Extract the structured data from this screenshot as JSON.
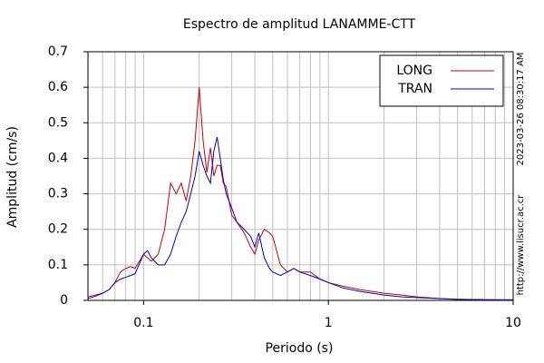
{
  "chart_data": {
    "type": "line",
    "title": "Espectro de amplitud LANAMME-CTT",
    "xlabel": "Periodo (s)",
    "ylabel": "Amplitud (cm/s)",
    "side_texts": [
      "2023-03-26 08:30:17 AM",
      "http://www.lisucr.ac.cr"
    ],
    "xscale": "log",
    "grid": true,
    "legend": "upper right",
    "xlim": [
      0.05,
      10
    ],
    "xticks": [
      0.1,
      1,
      10
    ],
    "ylim": [
      0,
      0.7
    ],
    "yticks": [
      0,
      0.1,
      0.2,
      0.3,
      0.4,
      0.5,
      0.6,
      0.7
    ],
    "x": [
      0.05,
      0.055,
      0.06,
      0.065,
      0.07,
      0.075,
      0.08,
      0.085,
      0.09,
      0.1,
      0.105,
      0.11,
      0.12,
      0.13,
      0.14,
      0.15,
      0.16,
      0.17,
      0.18,
      0.19,
      0.2,
      0.21,
      0.22,
      0.23,
      0.24,
      0.25,
      0.26,
      0.27,
      0.28,
      0.3,
      0.32,
      0.35,
      0.38,
      0.4,
      0.42,
      0.45,
      0.48,
      0.5,
      0.55,
      0.6,
      0.65,
      0.7,
      0.8,
      0.9,
      1,
      1.2,
      1.5,
      2,
      2.5,
      3,
      4,
      5,
      7,
      10
    ],
    "series": [
      {
        "name": "LONG",
        "color": "#cc0000",
        "values": [
          0.01,
          0.015,
          0.02,
          0.03,
          0.05,
          0.08,
          0.09,
          0.095,
          0.09,
          0.13,
          0.12,
          0.11,
          0.13,
          0.2,
          0.33,
          0.3,
          0.33,
          0.28,
          0.35,
          0.45,
          0.6,
          0.45,
          0.36,
          0.43,
          0.35,
          0.38,
          0.38,
          0.33,
          0.32,
          0.24,
          0.22,
          0.19,
          0.15,
          0.13,
          0.17,
          0.2,
          0.19,
          0.18,
          0.1,
          0.08,
          0.09,
          0.08,
          0.08,
          0.06,
          0.05,
          0.04,
          0.03,
          0.02,
          0.015,
          0.01,
          0.005,
          0.003,
          0.002,
          0.002
        ]
      },
      {
        "name": "TRAN",
        "color": "#0000cc",
        "values": [
          0.005,
          0.012,
          0.02,
          0.03,
          0.05,
          0.06,
          0.065,
          0.07,
          0.075,
          0.13,
          0.14,
          0.12,
          0.1,
          0.1,
          0.13,
          0.18,
          0.22,
          0.25,
          0.3,
          0.35,
          0.42,
          0.38,
          0.35,
          0.33,
          0.42,
          0.46,
          0.4,
          0.34,
          0.3,
          0.26,
          0.22,
          0.2,
          0.18,
          0.15,
          0.19,
          0.12,
          0.09,
          0.08,
          0.07,
          0.08,
          0.09,
          0.08,
          0.07,
          0.06,
          0.05,
          0.035,
          0.025,
          0.015,
          0.01,
          0.008,
          0.005,
          0.003,
          0.002,
          0.001
        ]
      }
    ]
  }
}
